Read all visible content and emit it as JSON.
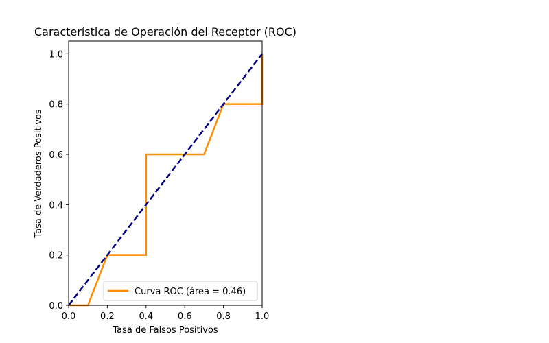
{
  "chart_data": {
    "type": "line",
    "title": "Característica de Operación del Receptor (ROC)",
    "xlabel": "Tasa de Falsos Positivos",
    "ylabel": "Tasa de Verdaderos Positivos",
    "xlim": [
      0.0,
      1.0
    ],
    "ylim": [
      0.0,
      1.05
    ],
    "x_ticks": [
      "0.0",
      "0.2",
      "0.4",
      "0.6",
      "0.8",
      "1.0"
    ],
    "y_ticks": [
      "0.0",
      "0.2",
      "0.4",
      "0.6",
      "0.8",
      "1.0"
    ],
    "grid": false,
    "legend_position": "lower right",
    "series": [
      {
        "name": "Curva ROC (área = 0.46)",
        "color": "#ff8c00",
        "style": "solid",
        "x": [
          0.0,
          0.0,
          0.1,
          0.2,
          0.4,
          0.4,
          0.7,
          0.8,
          1.0,
          1.0
        ],
        "y": [
          0.0,
          0.0,
          0.0,
          0.2,
          0.2,
          0.6,
          0.6,
          0.8,
          0.8,
          1.0
        ]
      },
      {
        "color": "#000080",
        "style": "dashed",
        "x": [
          0.0,
          1.0
        ],
        "y": [
          0.0,
          1.0
        ]
      }
    ]
  }
}
